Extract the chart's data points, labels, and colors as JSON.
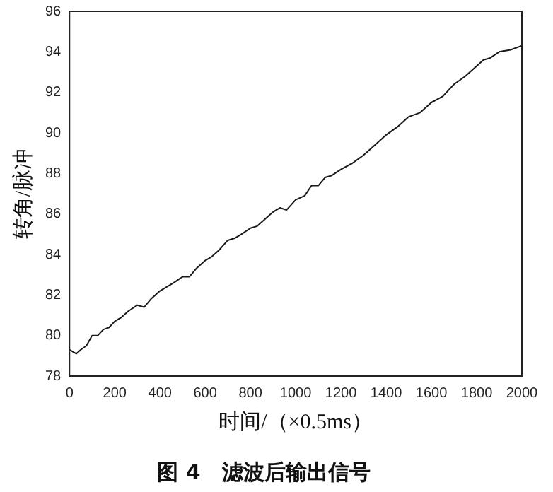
{
  "chart_data": {
    "type": "line",
    "title": "图 4　滤波后输出信号",
    "xlabel": "时间/（×0.5ms）",
    "ylabel": "转角/脉冲",
    "x": [
      0,
      15,
      30,
      50,
      75,
      100,
      125,
      150,
      175,
      200,
      230,
      260,
      300,
      330,
      360,
      400,
      430,
      460,
      500,
      530,
      560,
      600,
      630,
      660,
      700,
      730,
      760,
      800,
      830,
      860,
      900,
      930,
      960,
      1000,
      1040,
      1070,
      1100,
      1130,
      1160,
      1200,
      1250,
      1300,
      1350,
      1400,
      1450,
      1500,
      1550,
      1600,
      1650,
      1700,
      1750,
      1800,
      1830,
      1860,
      1900,
      1950,
      2000
    ],
    "series": [
      {
        "color": "#1a1a1a",
        "values": [
          79.3,
          79.2,
          79.1,
          79.3,
          79.5,
          80.0,
          80.0,
          80.3,
          80.4,
          80.7,
          80.9,
          81.2,
          81.5,
          81.4,
          81.8,
          82.2,
          82.4,
          82.6,
          82.9,
          82.9,
          83.3,
          83.7,
          83.9,
          84.2,
          84.7,
          84.8,
          85.0,
          85.3,
          85.4,
          85.7,
          86.1,
          86.3,
          86.2,
          86.7,
          86.9,
          87.4,
          87.4,
          87.8,
          87.9,
          88.2,
          88.5,
          88.9,
          89.4,
          89.9,
          90.3,
          90.8,
          91.0,
          91.5,
          91.8,
          92.4,
          92.8,
          93.3,
          93.6,
          93.7,
          94.0,
          94.1,
          94.3
        ]
      }
    ],
    "xlim": [
      0,
      2000
    ],
    "xticks": [
      0,
      200,
      400,
      600,
      800,
      1000,
      1200,
      1400,
      1600,
      1800,
      2000
    ],
    "ylim": [
      78,
      96
    ],
    "yticks": [
      78,
      80,
      82,
      84,
      86,
      88,
      90,
      92,
      94,
      96
    ],
    "grid": false,
    "legend": false,
    "marker": "none",
    "line_style": "solid"
  }
}
